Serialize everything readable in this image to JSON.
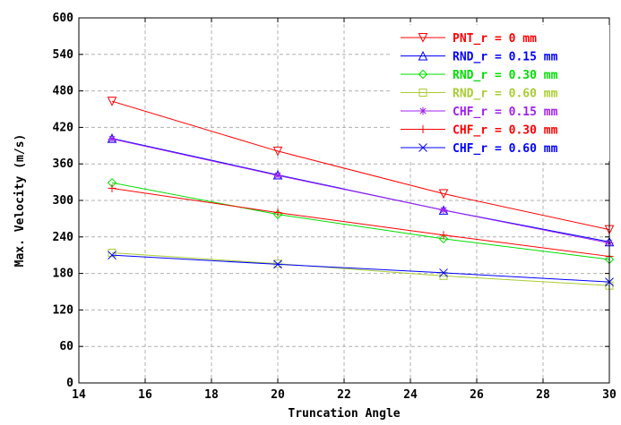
{
  "chart_data": {
    "type": "line",
    "title": "",
    "xlabel": "Truncation Angle",
    "ylabel": "Max. Velocity (m/s)",
    "xlim": [
      14,
      30
    ],
    "ylim": [
      0,
      600
    ],
    "xticks": [
      "14",
      "16",
      "18",
      "20",
      "22",
      "24",
      "26",
      "28",
      "30"
    ],
    "yticks": [
      "0",
      "60",
      "120",
      "180",
      "240",
      "300",
      "360",
      "420",
      "480",
      "540",
      "600"
    ],
    "grid": true,
    "legend_position": "top-right",
    "x": [
      15,
      20,
      25,
      30
    ],
    "series": [
      {
        "name": "PNT_r = 0 mm",
        "color": "#ff0000",
        "marker": "triangle-down",
        "values": [
          463,
          381,
          311,
          252
        ]
      },
      {
        "name": "RND_r = 0.15 mm",
        "color": "#0000ff",
        "marker": "triangle-up",
        "values": [
          402,
          342,
          284,
          232
        ]
      },
      {
        "name": "RND_r = 0.30 mm",
        "color": "#00dd00",
        "marker": "diamond",
        "values": [
          329,
          277,
          237,
          203
        ]
      },
      {
        "name": "RND_r = 0.60 mm",
        "color": "#aacc33",
        "marker": "square",
        "values": [
          214,
          196,
          176,
          160
        ]
      },
      {
        "name": "CHF_r = 0.15 mm",
        "color": "#a020f0",
        "marker": "asterisk",
        "values": [
          401,
          341,
          284,
          230
        ]
      },
      {
        "name": "CHF_r = 0.30 mm",
        "color": "#ff0000",
        "marker": "plus",
        "values": [
          320,
          280,
          243,
          208
        ]
      },
      {
        "name": "CHF_r = 0.60 mm",
        "color": "#0000ff",
        "marker": "x",
        "values": [
          210,
          195,
          181,
          166
        ]
      }
    ]
  }
}
